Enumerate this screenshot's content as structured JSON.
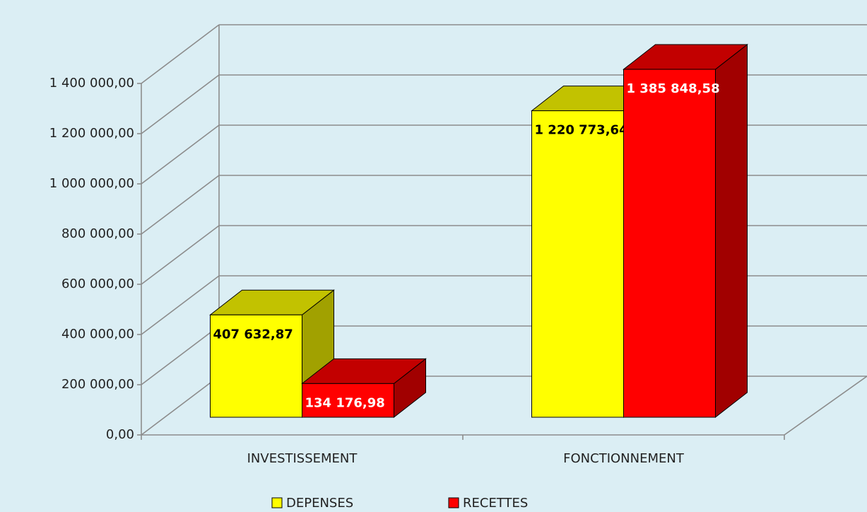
{
  "chart_data": {
    "type": "bar3d",
    "categories": [
      "INVESTISSEMENT",
      "FONCTIONNEMENT"
    ],
    "series": [
      {
        "name": "DEPENSES",
        "color": "#ffff00",
        "values": [
          407632.87,
          1220773.64
        ],
        "value_labels": [
          "407 632,87",
          "1 220 773,64"
        ]
      },
      {
        "name": "RECETTES",
        "color": "#ff0000",
        "values": [
          134176.98,
          1385848.58
        ],
        "value_labels": [
          "134 176,98",
          "1 385 848,58"
        ]
      }
    ],
    "ylim": [
      0,
      1400000
    ],
    "yticks": [
      {
        "value": 0,
        "label": "0,00"
      },
      {
        "value": 200000,
        "label": "200 000,00"
      },
      {
        "value": 400000,
        "label": "400 000,00"
      },
      {
        "value": 600000,
        "label": "600 000,00"
      },
      {
        "value": 800000,
        "label": "800 000,00"
      },
      {
        "value": 1000000,
        "label": "1 000 000,00"
      },
      {
        "value": 1200000,
        "label": "1 200 000,00"
      },
      {
        "value": 1400000,
        "label": "1 400 000,00"
      }
    ],
    "grid": true,
    "legend": "bottom"
  }
}
